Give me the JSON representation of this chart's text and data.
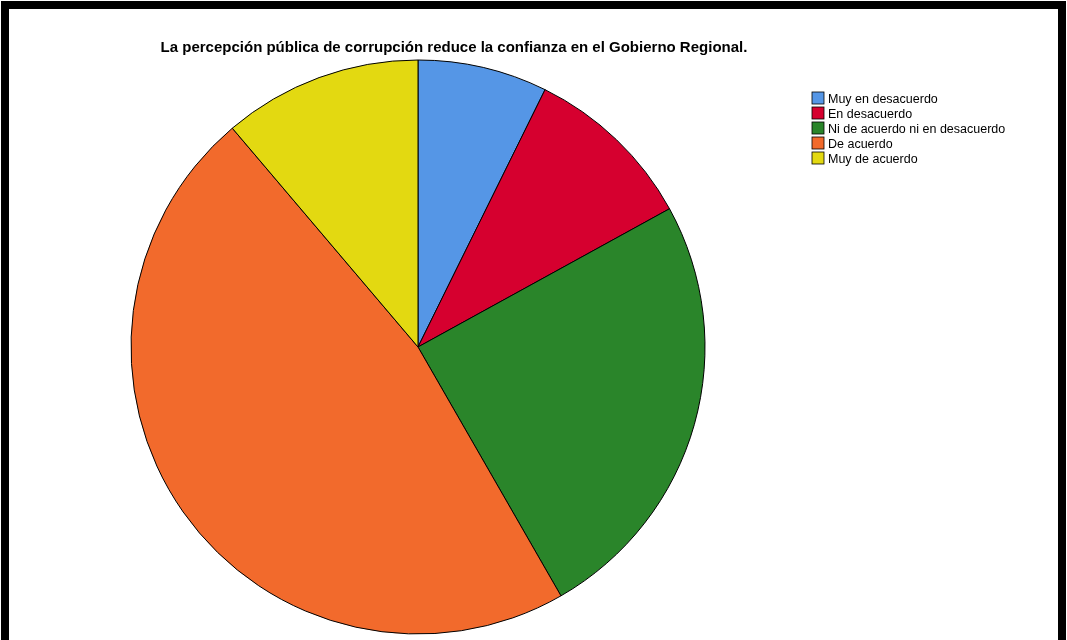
{
  "chart_data": {
    "type": "pie",
    "title": "La percepción pública de corrupción reduce la confianza en el Gobierno Regional.",
    "categories": [
      "Muy en desacuerdo",
      "En desacuerdo",
      "Ni de acuerdo ni en desacuerdo",
      "De acuerdo",
      "Muy de acuerdo"
    ],
    "values": [
      7.3,
      9.7,
      24.7,
      47.1,
      11.2
    ],
    "colors": [
      "#5596e6",
      "#d6002f",
      "#2a852a",
      "#f26a2c",
      "#e3d911"
    ],
    "legend": "top right"
  }
}
